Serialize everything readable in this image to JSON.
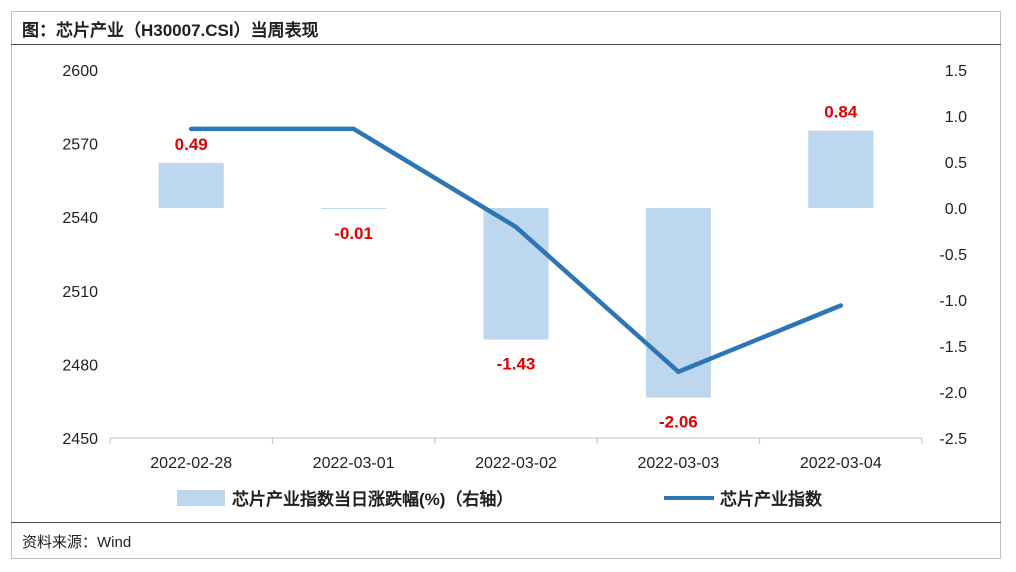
{
  "title": "图：芯片产业（H30007.CSI）当周表现",
  "source": "资料来源：Wind",
  "chart_data": {
    "type": "bar+line",
    "categories": [
      "2022-02-28",
      "2022-03-01",
      "2022-03-02",
      "2022-03-03",
      "2022-03-04"
    ],
    "bar_series": {
      "name": "芯片产业指数当日涨跌幅(%)（右轴）",
      "values": [
        0.49,
        -0.01,
        -1.43,
        -2.06,
        0.84
      ],
      "labels": [
        "0.49",
        "-0.01",
        "-1.43",
        "-2.06",
        "0.84"
      ],
      "color": "#bdd7ee",
      "axis": "right"
    },
    "line_series": {
      "name": "芯片产业指数",
      "values": [
        2576,
        2576,
        2536,
        2477,
        2504
      ],
      "color": "#2e75b6",
      "axis": "left"
    },
    "left_axis": {
      "ylim": [
        2450,
        2600
      ],
      "ticks": [
        "2600",
        "2570",
        "2540",
        "2510",
        "2480",
        "2450"
      ],
      "tick_values": [
        2600,
        2570,
        2540,
        2510,
        2480,
        2450
      ]
    },
    "right_axis": {
      "ylim": [
        -2.5,
        1.5
      ],
      "ticks": [
        "1.5",
        "1.0",
        "0.5",
        "0.0",
        "-0.5",
        "-1.0",
        "-1.5",
        "-2.0",
        "-2.5"
      ],
      "tick_values": [
        1.5,
        1.0,
        0.5,
        0.0,
        -0.5,
        -1.0,
        -1.5,
        -2.0,
        -2.5
      ]
    },
    "label_color": "#e00000"
  }
}
